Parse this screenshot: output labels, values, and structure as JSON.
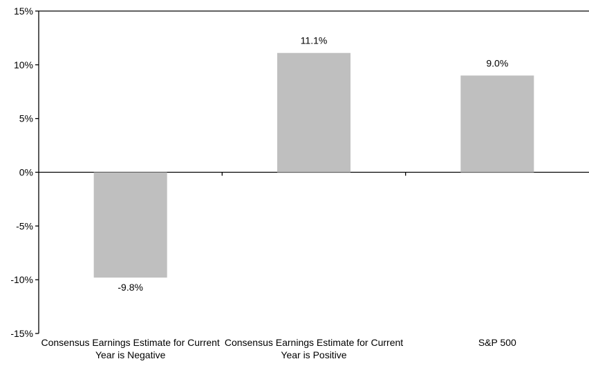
{
  "chart_data": {
    "type": "bar",
    "categories": [
      [
        "Consensus Earnings Estimate for Current",
        "Year is Negative"
      ],
      [
        "Consensus Earnings Estimate for Current",
        "Year is Positive"
      ],
      [
        "S&P 500"
      ]
    ],
    "values": [
      -9.8,
      11.1,
      9.0
    ],
    "value_labels": [
      "-9.8%",
      "11.1%",
      "9.0%"
    ],
    "yticks": [
      15,
      10,
      5,
      0,
      -5,
      -10,
      -15
    ],
    "ytick_labels": [
      "15%",
      "10%",
      "5%",
      "0%",
      "-5%",
      "-10%",
      "-15%"
    ],
    "ylim": [
      -15,
      15
    ],
    "title": "",
    "xlabel": "",
    "ylabel": "",
    "grid": false,
    "bar_color": "#bfbfbf"
  }
}
